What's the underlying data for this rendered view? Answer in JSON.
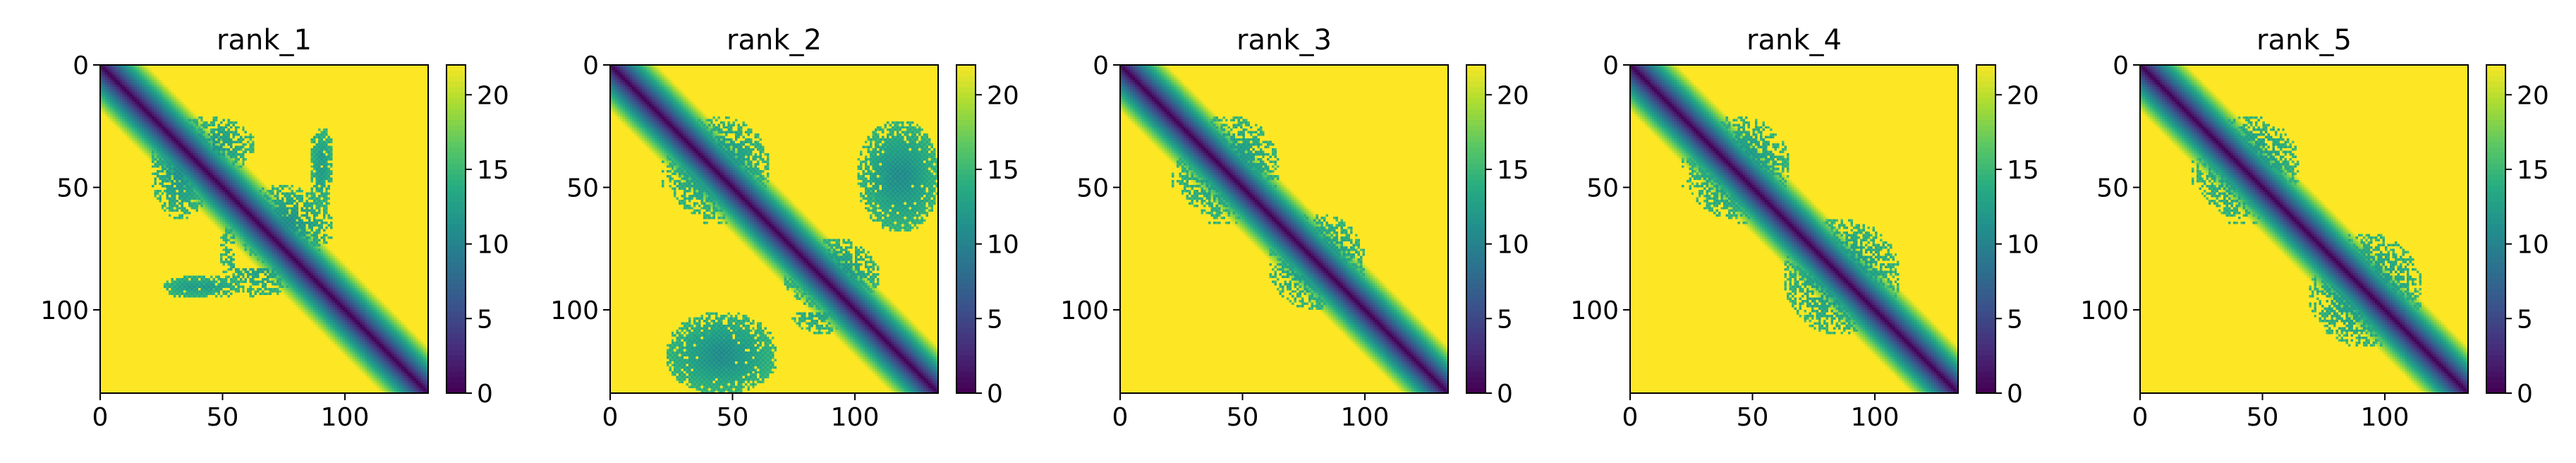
{
  "figure": {
    "background": "#ffffff"
  },
  "chart_data": [
    {
      "type": "heatmap",
      "title": "rank_1",
      "xlim": [
        0,
        134
      ],
      "ylim": [
        134,
        0
      ],
      "x_ticks": [
        0,
        50,
        100
      ],
      "y_ticks": [
        0,
        50,
        100
      ],
      "colorbar": {
        "range": [
          0,
          22
        ],
        "ticks": [
          0,
          5,
          10,
          15,
          20
        ],
        "colormap": "viridis"
      },
      "description_values": {
        "diagonal": "0 along main diagonal rising to ~22 away from it",
        "contact_blobs": [
          {
            "x_range": [
              22,
              50
            ],
            "y_range": [
              20,
              45
            ],
            "value_range": [
              8,
              14
            ]
          },
          {
            "x_range": [
              20,
              45
            ],
            "y_range": [
              20,
              63
            ],
            "value_range": [
              8,
              14
            ]
          },
          {
            "x_range": [
              55,
              95
            ],
            "y_range": [
              48,
              82
            ],
            "value_range": [
              8,
              14
            ]
          },
          {
            "x_range": [
              85,
              95
            ],
            "y_range": [
              25,
              48
            ],
            "value_range": [
              10,
              14
            ]
          },
          {
            "x_range": [
              25,
              60
            ],
            "y_range": [
              85,
              95
            ],
            "value_range": [
              10,
              14
            ]
          }
        ]
      }
    },
    {
      "type": "heatmap",
      "title": "rank_2",
      "xlim": [
        0,
        134
      ],
      "ylim": [
        134,
        0
      ],
      "x_ticks": [
        0,
        50,
        100
      ],
      "y_ticks": [
        0,
        50,
        100
      ],
      "colorbar": {
        "range": [
          0,
          22
        ],
        "ticks": [
          0,
          5,
          10,
          15,
          20
        ],
        "colormap": "viridis"
      },
      "description_values": {
        "diagonal": "0 along main diagonal rising to ~22 away from it",
        "contact_blobs": [
          {
            "x_range": [
              22,
              65
            ],
            "y_range": [
              20,
              63
            ],
            "value_range": [
              8,
              14
            ]
          },
          {
            "x_range": [
              100,
              134
            ],
            "y_range": [
              22,
              68
            ],
            "value_range": [
              8,
              14
            ]
          },
          {
            "x_range": [
              22,
              68
            ],
            "y_range": [
              105,
              134
            ],
            "value_range": [
              8,
              14
            ]
          },
          {
            "x_range": [
              70,
              110
            ],
            "y_range": [
              70,
              100
            ],
            "value_range": [
              8,
              14
            ]
          }
        ]
      }
    },
    {
      "type": "heatmap",
      "title": "rank_3",
      "xlim": [
        0,
        134
      ],
      "ylim": [
        134,
        0
      ],
      "x_ticks": [
        0,
        50,
        100
      ],
      "y_ticks": [
        0,
        50,
        100
      ],
      "colorbar": {
        "range": [
          0,
          22
        ],
        "ticks": [
          0,
          5,
          10,
          15,
          20
        ],
        "colormap": "viridis"
      },
      "description_values": {
        "diagonal": "0 along main diagonal rising to ~22 away from it",
        "contact_blobs": [
          {
            "x_range": [
              22,
              65
            ],
            "y_range": [
              20,
              63
            ],
            "value_range": [
              8,
              14
            ]
          },
          {
            "x_range": [
              60,
              100
            ],
            "y_range": [
              60,
              100
            ],
            "value_range": [
              8,
              14
            ]
          }
        ]
      }
    },
    {
      "type": "heatmap",
      "title": "rank_4",
      "xlim": [
        0,
        134
      ],
      "ylim": [
        134,
        0
      ],
      "x_ticks": [
        0,
        50,
        100
      ],
      "y_ticks": [
        0,
        50,
        100
      ],
      "colorbar": {
        "range": [
          0,
          22
        ],
        "ticks": [
          0,
          5,
          10,
          15,
          20
        ],
        "colormap": "viridis"
      },
      "description_values": {
        "diagonal": "0 along main diagonal rising to ~22 away from it",
        "contact_blobs": [
          {
            "x_range": [
              22,
              65
            ],
            "y_range": [
              20,
              63
            ],
            "value_range": [
              8,
              14
            ]
          },
          {
            "x_range": [
              62,
              110
            ],
            "y_range": [
              62,
              110
            ],
            "value_range": [
              8,
              14
            ]
          }
        ]
      }
    },
    {
      "type": "heatmap",
      "title": "rank_5",
      "xlim": [
        0,
        134
      ],
      "ylim": [
        134,
        0
      ],
      "x_ticks": [
        0,
        50,
        100
      ],
      "y_ticks": [
        0,
        50,
        100
      ],
      "colorbar": {
        "range": [
          0,
          22
        ],
        "ticks": [
          0,
          5,
          10,
          15,
          20
        ],
        "colormap": "viridis"
      },
      "description_values": {
        "diagonal": "0 along main diagonal rising to ~22 away from it",
        "contact_blobs": [
          {
            "x_range": [
              22,
              65
            ],
            "y_range": [
              20,
              63
            ],
            "value_range": [
              8,
              14
            ]
          },
          {
            "x_range": [
              68,
              115
            ],
            "y_range": [
              68,
              115
            ],
            "value_range": [
              8,
              14
            ]
          }
        ]
      }
    }
  ]
}
